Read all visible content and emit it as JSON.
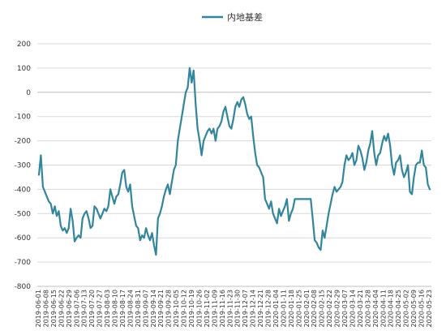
{
  "chart_data": {
    "type": "line",
    "title": "",
    "xlabel": "",
    "ylabel": "",
    "ylim": [
      -800,
      200
    ],
    "yticks": [
      200,
      100,
      0,
      -100,
      -200,
      -300,
      -400,
      -500,
      -600,
      -700,
      -800
    ],
    "grid": true,
    "legend_position": "top-center",
    "xtick_labels": [
      "2019-06-01",
      "2019-06-08",
      "2019-06-15",
      "2019-06-22",
      "2019-06-29",
      "2019-07-06",
      "2019-07-13",
      "2019-07-20",
      "2019-07-27",
      "2019-08-03",
      "2019-08-10",
      "2019-08-17",
      "2019-08-24",
      "2019-08-31",
      "2019-09-07",
      "2019-09-14",
      "2019-09-21",
      "2019-09-28",
      "2019-10-05",
      "2019-10-12",
      "2019-10-19",
      "2019-10-26",
      "2019-11-02",
      "2019-11-09",
      "2019-11-16",
      "2019-11-23",
      "2019-11-30",
      "2019-12-07",
      "2019-12-14",
      "2019-12-21",
      "2019-12-28",
      "2020-01-04",
      "2020-01-11",
      "2020-01-18",
      "2020-01-25",
      "2020-02-01",
      "2020-02-08",
      "2020-02-15",
      "2020-02-22",
      "2020-02-29",
      "2020-03-07",
      "2020-03-14",
      "2020-03-21",
      "2020-03-28",
      "2020-04-04",
      "2020-04-11",
      "2020-04-18",
      "2020-04-25",
      "2020-05-02",
      "2020-05-09",
      "2020-05-16",
      "2020-05-23"
    ],
    "series": [
      {
        "name": "内地基差",
        "color": "#31859c",
        "values": [
          -340,
          -260,
          -390,
          -410,
          -430,
          -450,
          -460,
          -500,
          -470,
          -510,
          -490,
          -550,
          -570,
          -560,
          -580,
          -560,
          -480,
          -530,
          -615,
          -600,
          -590,
          -600,
          -520,
          -500,
          -490,
          -520,
          -560,
          -550,
          -470,
          -480,
          -500,
          -520,
          -500,
          -480,
          -490,
          -470,
          -400,
          -430,
          -460,
          -430,
          -420,
          -380,
          -330,
          -320,
          -390,
          -410,
          -380,
          -470,
          -510,
          -550,
          -560,
          -610,
          -590,
          -600,
          -560,
          -590,
          -610,
          -580,
          -630,
          -670,
          -520,
          -500,
          -470,
          -430,
          -400,
          -380,
          -420,
          -370,
          -320,
          -300,
          -200,
          -150,
          -100,
          -50,
          0,
          20,
          100,
          40,
          90,
          -50,
          -150,
          -200,
          -260,
          -200,
          -180,
          -160,
          -150,
          -170,
          -150,
          -200,
          -150,
          -140,
          -120,
          -80,
          -60,
          -100,
          -140,
          -150,
          -110,
          -60,
          -40,
          -60,
          -30,
          -20,
          -50,
          -90,
          -110,
          -100,
          -180,
          -250,
          -300,
          -310,
          -330,
          -350,
          -440,
          -460,
          -480,
          -450,
          -500,
          -520,
          -540,
          -480,
          -510,
          -490,
          -470,
          -440,
          -530,
          -500,
          -480,
          -440,
          -440,
          -440,
          -440,
          -440,
          -440,
          -440,
          -440,
          -440,
          -520,
          -610,
          -620,
          -640,
          -650,
          -570,
          -600,
          -550,
          -500,
          -460,
          -420,
          -390,
          -410,
          -400,
          -390,
          -370,
          -300,
          -260,
          -280,
          -270,
          -250,
          -300,
          -280,
          -220,
          -240,
          -270,
          -320,
          -290,
          -240,
          -210,
          -160,
          -250,
          -300,
          -260,
          -250,
          -210,
          -180,
          -200,
          -170,
          -220,
          -300,
          -340,
          -290,
          -280,
          -260,
          -320,
          -350,
          -330,
          -300,
          -410,
          -420,
          -350,
          -300,
          -290,
          -290,
          -240,
          -300,
          -310,
          -380,
          -400
        ]
      }
    ]
  }
}
